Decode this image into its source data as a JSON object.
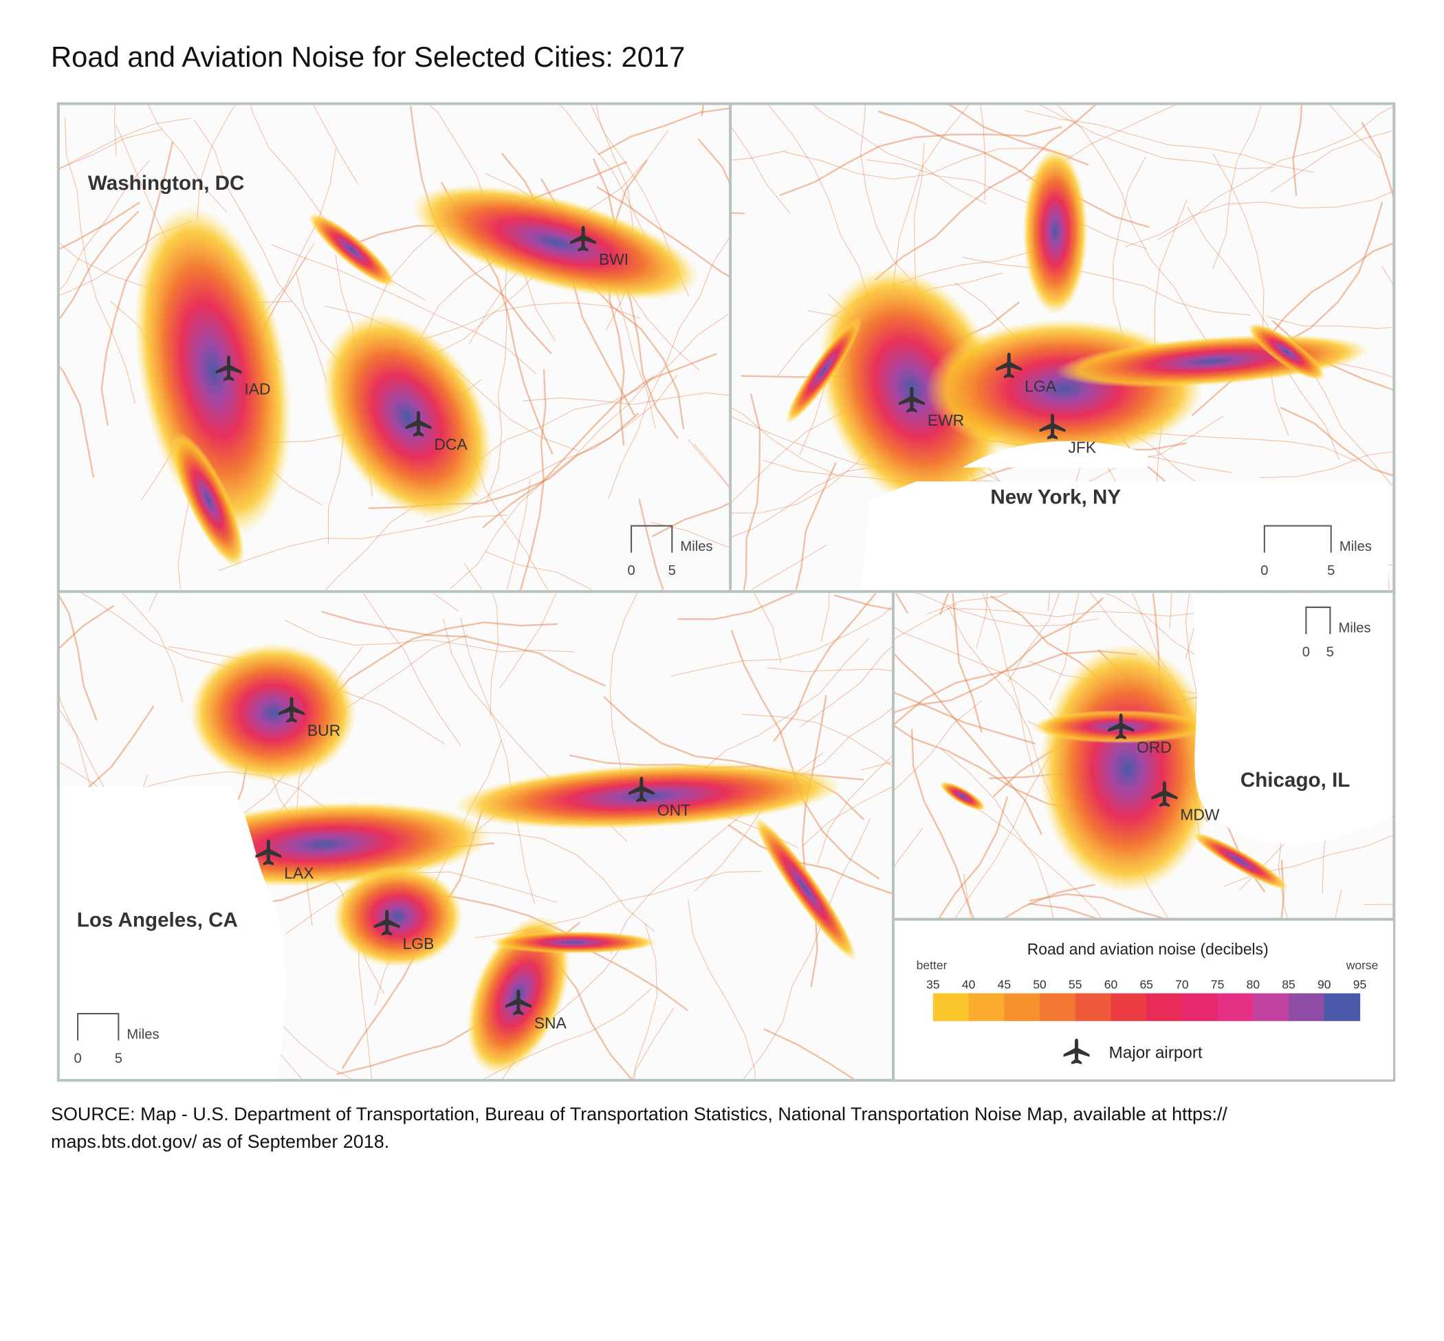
{
  "title": "Road and Aviation Noise for Selected Cities: 2017",
  "panels": [
    {
      "name": "Washington, DC",
      "airports": [
        "IAD",
        "DCA",
        "BWI"
      ],
      "scale": {
        "ticks": [
          0,
          5
        ],
        "unit": "Miles"
      }
    },
    {
      "name": "New York, NY",
      "airports": [
        "EWR",
        "LGA",
        "JFK"
      ],
      "scale": {
        "ticks": [
          0,
          5
        ],
        "unit": "Miles"
      }
    },
    {
      "name": "Los Angeles, CA",
      "airports": [
        "BUR",
        "LAX",
        "LGB",
        "SNA",
        "ONT"
      ],
      "scale": {
        "ticks": [
          0,
          5
        ],
        "unit": "Miles"
      }
    },
    {
      "name": "Chicago, IL",
      "airports": [
        "ORD",
        "MDW"
      ],
      "scale": {
        "ticks": [
          0,
          5
        ],
        "unit": "Miles"
      }
    }
  ],
  "legend": {
    "title": "Road and aviation noise (decibels)",
    "low_label": "better",
    "high_label": "worse",
    "ticks": [
      35,
      40,
      45,
      50,
      55,
      60,
      65,
      70,
      75,
      80,
      85,
      90,
      95
    ],
    "colors": [
      "#fcc72d",
      "#fbac2e",
      "#f7922f",
      "#f37834",
      "#ef5a3a",
      "#eb3c44",
      "#e82a56",
      "#e5286c",
      "#e53185",
      "#c2429f",
      "#8e4ca4",
      "#4b5aa8"
    ],
    "airport_label": "Major airport"
  },
  "source": [
    "SOURCE: Map - U.S. Department of Transportation, Bureau of Transportation Statistics, National Transportation Noise Map, available at https://",
    "maps.bts.dot.gov/ as of September 2018."
  ]
}
